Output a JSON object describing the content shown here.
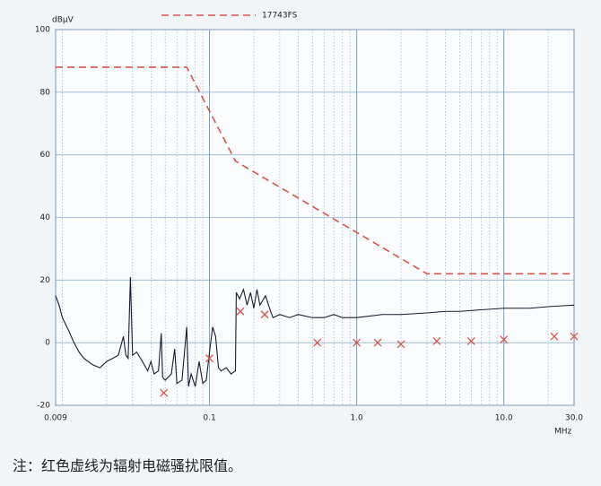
{
  "chart_data": {
    "type": "line",
    "x_scale": "log",
    "grid": true,
    "y_label": "dBμV",
    "x_label": "MHz",
    "xlim": [
      0.009,
      30
    ],
    "ylim": [
      -20,
      100
    ],
    "xticks": [
      0.009,
      0.1,
      {
        "value": 1,
        "label": "1.0"
      },
      {
        "value": 10,
        "label": "10.0"
      },
      {
        "value": 30,
        "label": "30.0"
      }
    ],
    "yticks": [
      -20,
      0,
      20,
      40,
      60,
      80,
      100
    ],
    "series": [
      {
        "name": "17743FS",
        "color": "#d9534f",
        "mode": "dashed-line",
        "x": [
          0.009,
          0.07,
          0.15,
          3,
          30
        ],
        "values": [
          88,
          88,
          58,
          22,
          22
        ]
      },
      {
        "color": "#1c1c30",
        "mode": "line",
        "x": [
          0.009,
          0.0095,
          0.01,
          0.011,
          0.012,
          0.013,
          0.014,
          0.016,
          0.018,
          0.02,
          0.022,
          0.024,
          0.026,
          0.027,
          0.028,
          0.029,
          0.03,
          0.032,
          0.035,
          0.038,
          0.04,
          0.042,
          0.045,
          0.047,
          0.048,
          0.05,
          0.055,
          0.058,
          0.06,
          0.065,
          0.07,
          0.072,
          0.075,
          0.08,
          0.085,
          0.09,
          0.095,
          0.1,
          0.105,
          0.11,
          0.115,
          0.12,
          0.13,
          0.14,
          0.15,
          0.152,
          0.16,
          0.17,
          0.18,
          0.19,
          0.2,
          0.21,
          0.22,
          0.24,
          0.26,
          0.27,
          0.3,
          0.35,
          0.4,
          0.5,
          0.6,
          0.7,
          0.8,
          1,
          1.5,
          2,
          3,
          4,
          5,
          7,
          10,
          15,
          20,
          30
        ],
        "values": [
          15,
          12,
          8,
          4,
          0,
          -3,
          -5,
          -7,
          -8,
          -6,
          -5,
          -4,
          2,
          -4,
          -5,
          21,
          -4,
          -3,
          -6,
          -9,
          -6,
          -10,
          -9,
          3,
          -11,
          -12,
          -10,
          -2,
          -13,
          -12,
          5,
          -14,
          -10,
          -14,
          -6,
          -13,
          -12,
          -3,
          5,
          2,
          -8,
          -9,
          -8,
          -10,
          -9,
          16,
          14,
          17,
          12,
          16,
          11,
          17,
          12,
          15,
          10,
          8,
          9,
          8,
          9,
          8,
          8,
          9,
          8,
          8,
          9,
          9,
          9.5,
          10,
          10,
          10.5,
          11,
          11,
          11.5,
          12
        ]
      },
      {
        "color": "#d9534f",
        "mode": "markers",
        "x": [
          0.049,
          0.1,
          0.162,
          0.237,
          0.54,
          1,
          1.39,
          2,
          3.5,
          6,
          10,
          22,
          30
        ],
        "values": [
          -16,
          -5,
          10,
          9,
          0,
          0,
          0,
          -0.5,
          0.5,
          0.5,
          1,
          2,
          2
        ]
      }
    ]
  },
  "note": "注：红色虚线为辐射电磁骚扰限值。"
}
